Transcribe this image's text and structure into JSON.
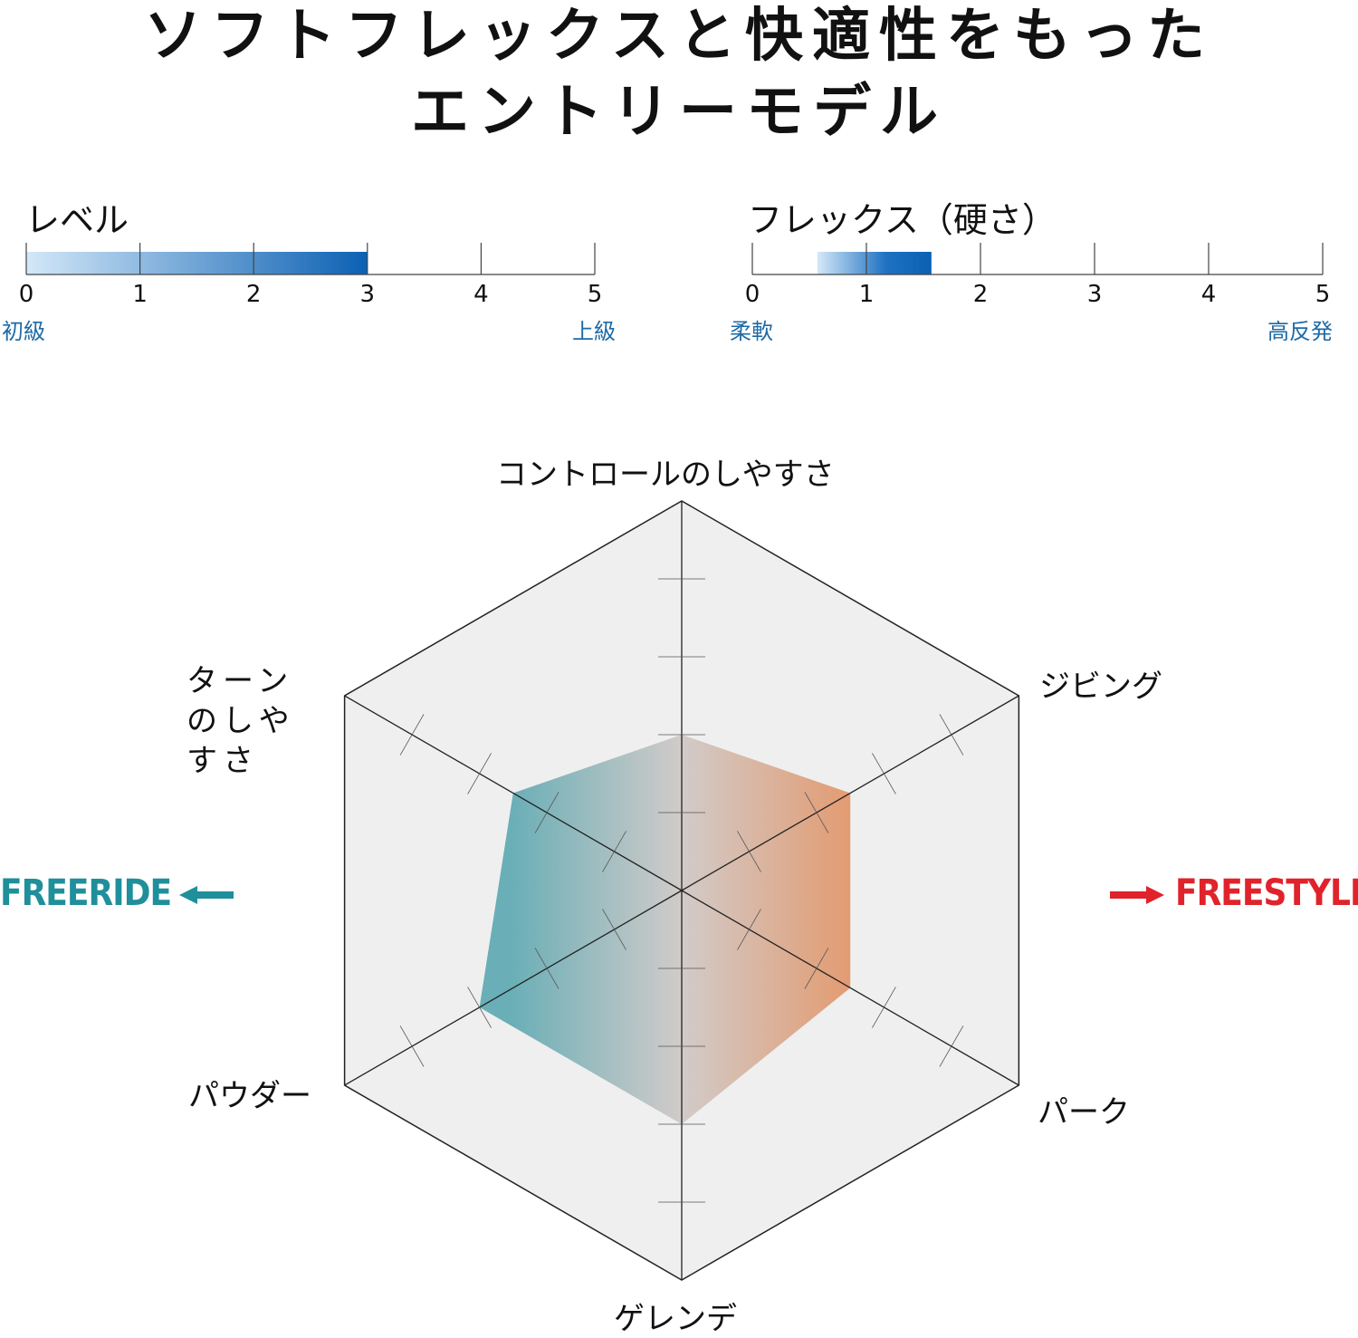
{
  "title": {
    "line1": "ソフトフレックスと快適性をもった",
    "line2": "エントリーモデル"
  },
  "scales": [
    {
      "label": "レベル",
      "ticks": [
        "0",
        "1",
        "2",
        "3",
        "4",
        "5"
      ],
      "range": [
        0,
        3
      ],
      "left_end": "初級",
      "right_end": "上級"
    },
    {
      "label": "フレックス（硬さ）",
      "ticks": [
        "0",
        "1",
        "2",
        "3",
        "4",
        "5"
      ],
      "range": [
        0.57,
        1.57
      ],
      "left_end": "柔軟",
      "right_end": "高反発"
    }
  ],
  "style_labels": {
    "left": "FREERIDE",
    "right": "FREESTYLE"
  },
  "colors": {
    "scale_light": "#cfe5f7",
    "scale_dark": "#0b60b3",
    "freeride": "#1f8f9b",
    "freestyle": "#e0232b",
    "radar_left": "#5fa9b2",
    "radar_right": "#e29466"
  },
  "chart_data": {
    "type": "radar",
    "axes": [
      "コントロールのしやすさ",
      "ジビング",
      "パーク",
      "ゲレンデ",
      "パウダー",
      "ターンのしやすさ"
    ],
    "max": 5,
    "values": [
      2,
      2.5,
      2.5,
      3,
      3,
      2.5
    ]
  }
}
